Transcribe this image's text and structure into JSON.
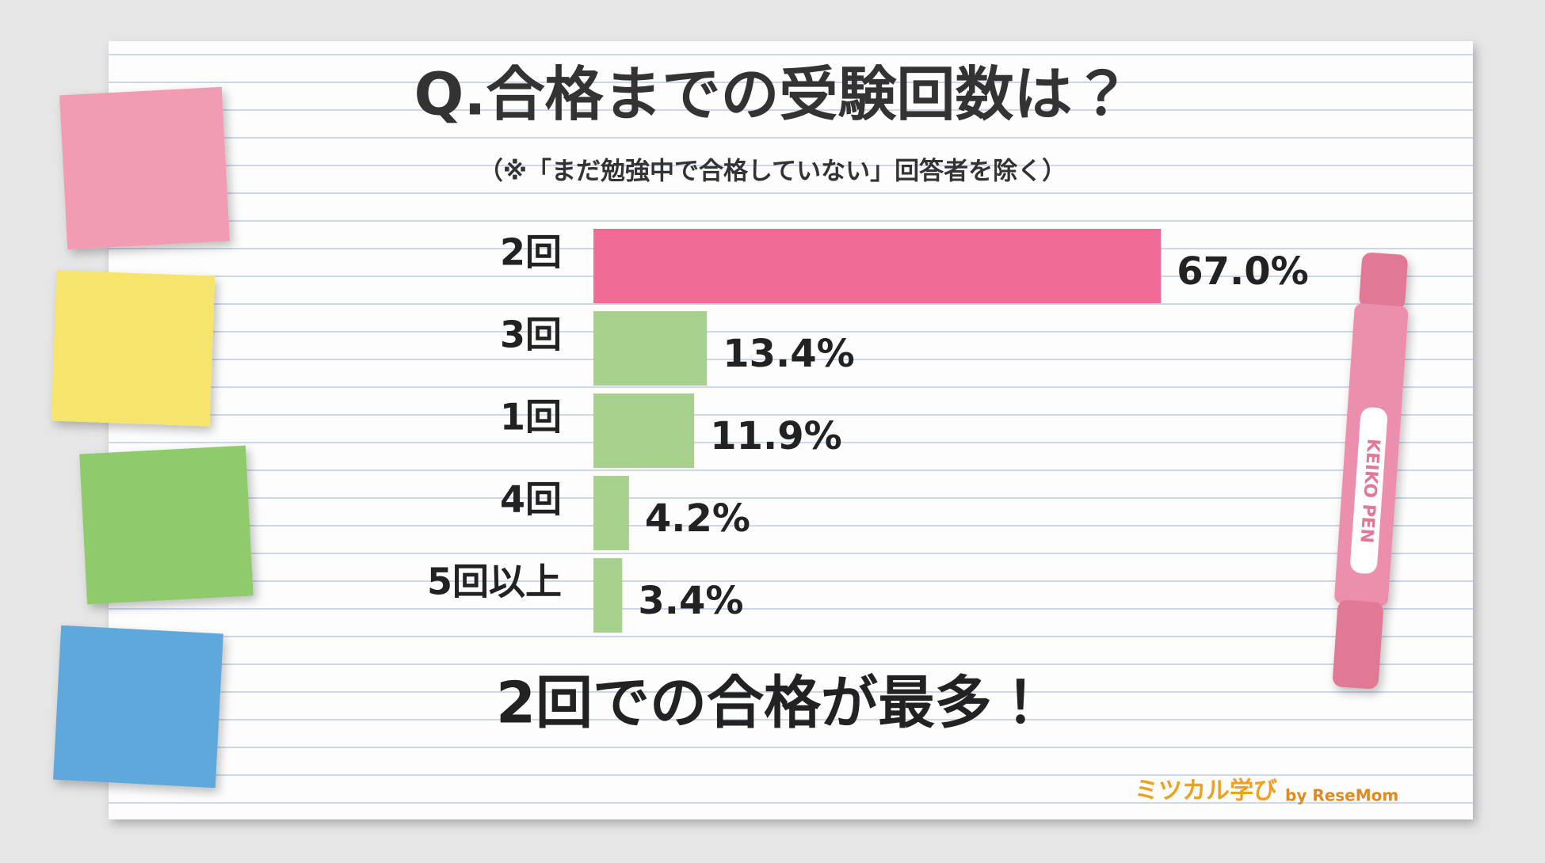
{
  "chart_data": {
    "type": "bar",
    "orientation": "horizontal",
    "title": "Q.合格までの受験回数は？",
    "subtitle": "（※「まだ勉強中で合格していない」回答者を除く）",
    "categories": [
      "2回",
      "3回",
      "1回",
      "4回",
      "5回以上"
    ],
    "values": [
      67.0,
      13.4,
      11.9,
      4.2,
      3.4
    ],
    "value_labels": [
      "67.0%",
      "13.4%",
      "11.9%",
      "4.2%",
      "3.4%"
    ],
    "colors": [
      "#f06b95",
      "#a9d18e",
      "#a9d18e",
      "#a9d18e",
      "#a9d18e"
    ],
    "annotation": "2回での合格が最多！",
    "brand": "ミツカル学び",
    "brand_by": "by ReseMom",
    "pen_label": "KEIKO PEN"
  }
}
